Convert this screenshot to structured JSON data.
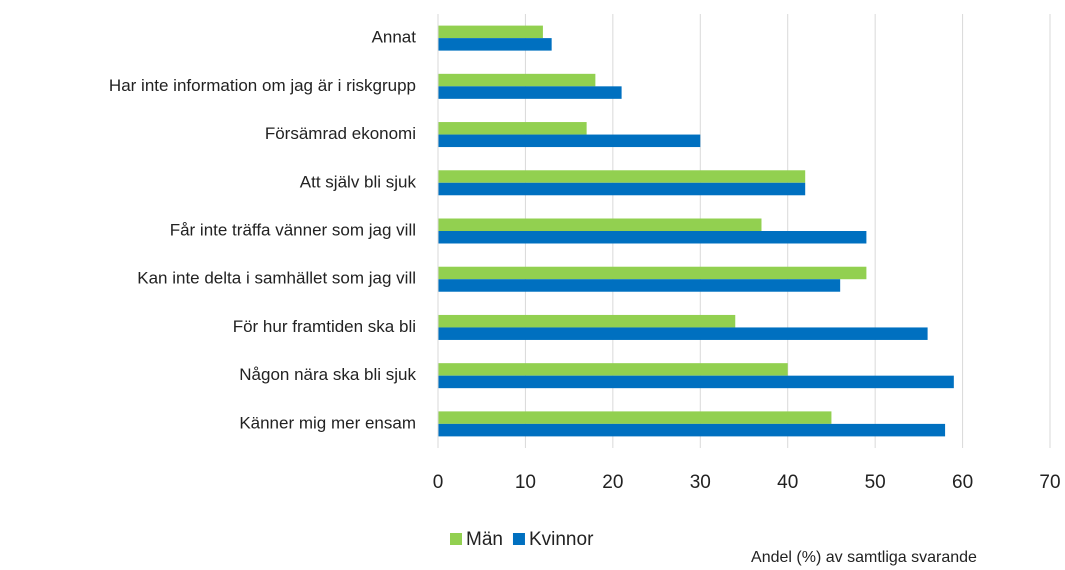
{
  "chart_data": {
    "type": "bar",
    "orientation": "horizontal",
    "x_label": "Andel (%) av samtliga svarande",
    "categories": [
      "Annat",
      "Har inte information om jag är i riskgrupp",
      "Försämrad ekonomi",
      "Att själv bli sjuk",
      "Får inte träffa vänner som jag vill",
      "Kan inte delta i samhället som jag vill",
      "För hur framtiden ska bli",
      "Någon nära ska bli sjuk",
      "Känner mig mer ensam"
    ],
    "series": [
      {
        "name": "Män",
        "color": "#92d050",
        "values": [
          12,
          18,
          17,
          42,
          37,
          49,
          34,
          40,
          45
        ]
      },
      {
        "name": "Kvinnor",
        "color": "#0070c0",
        "values": [
          13,
          21,
          30,
          42,
          49,
          46,
          56,
          59,
          58
        ]
      }
    ],
    "xlim": [
      0,
      70
    ],
    "xticks": [
      0,
      10,
      20,
      30,
      40,
      50,
      60,
      70
    ],
    "grid": true
  }
}
